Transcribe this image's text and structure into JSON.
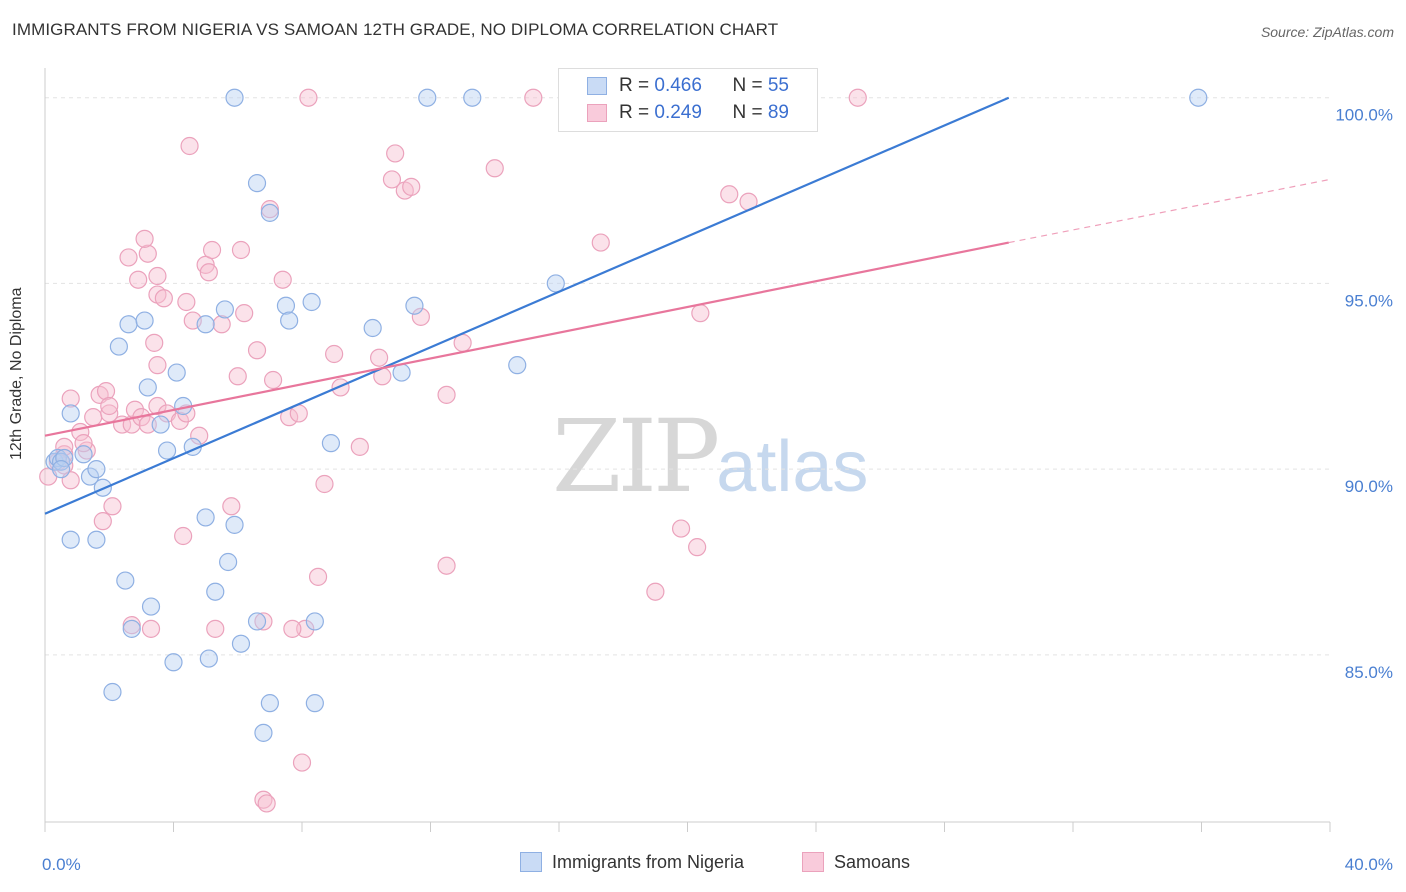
{
  "title": "IMMIGRANTS FROM NIGERIA VS SAMOAN 12TH GRADE, NO DIPLOMA CORRELATION CHART",
  "source": "Source: ZipAtlas.com",
  "watermark": {
    "zip": "ZIP",
    "atlas": "atlas"
  },
  "colors": {
    "blue": "#3b7bd4",
    "pink": "#e8769c",
    "blue_fill": "#b9d0f2",
    "pink_fill": "#f6bfd1"
  },
  "legend": {
    "rows": [
      {
        "r_label": "R = ",
        "r_value": "0.466",
        "n_label": "N = ",
        "n_value": "55"
      },
      {
        "r_label": "R = ",
        "r_value": "0.249",
        "n_label": "N = ",
        "n_value": "89"
      }
    ]
  },
  "bottom_legend": [
    "Immigrants from Nigeria",
    "Samoans"
  ],
  "chart_data": {
    "type": "scatter",
    "ylabel": "12th Grade, No Diploma",
    "xlabel": "",
    "xlim": [
      0,
      40
    ],
    "ylim": [
      80.5,
      100.8
    ],
    "x_tick_labels": [
      {
        "x": 0,
        "label": "0.0%"
      },
      {
        "x": 40,
        "label": "40.0%"
      }
    ],
    "y_ticks": [
      {
        "y": 85,
        "label": "85.0%"
      },
      {
        "y": 90,
        "label": "90.0%"
      },
      {
        "y": 95,
        "label": "95.0%"
      },
      {
        "y": 100,
        "label": "100.0%"
      }
    ],
    "grid": true,
    "legend_position": "top-center",
    "series": [
      {
        "name": "Immigrants from Nigeria",
        "color": "#3b7bd4",
        "trend": {
          "x0": 0,
          "y0": 88.8,
          "x1": 30,
          "y1": 100.0
        },
        "points": [
          [
            0.3,
            90.2
          ],
          [
            0.4,
            90.3
          ],
          [
            0.5,
            90.2
          ],
          [
            0.6,
            90.3
          ],
          [
            0.8,
            91.5
          ],
          [
            1.2,
            90.4
          ],
          [
            1.4,
            89.8
          ],
          [
            1.6,
            90.0
          ],
          [
            1.8,
            89.5
          ],
          [
            0.8,
            88.1
          ],
          [
            1.6,
            88.1
          ],
          [
            2.3,
            93.3
          ],
          [
            2.6,
            93.9
          ],
          [
            3.1,
            94.0
          ],
          [
            3.2,
            92.2
          ],
          [
            3.6,
            91.2
          ],
          [
            3.8,
            90.5
          ],
          [
            4.1,
            92.6
          ],
          [
            4.3,
            91.7
          ],
          [
            4.6,
            90.6
          ],
          [
            5.0,
            93.9
          ],
          [
            5.6,
            94.3
          ],
          [
            5.0,
            88.7
          ],
          [
            5.3,
            86.7
          ],
          [
            5.7,
            87.5
          ],
          [
            5.9,
            88.5
          ],
          [
            2.5,
            87.0
          ],
          [
            3.3,
            86.3
          ],
          [
            2.7,
            85.7
          ],
          [
            4.0,
            84.8
          ],
          [
            5.1,
            84.9
          ],
          [
            6.1,
            85.3
          ],
          [
            6.6,
            85.9
          ],
          [
            2.1,
            84.0
          ],
          [
            7.0,
            83.7
          ],
          [
            6.8,
            82.9
          ],
          [
            8.4,
            83.7
          ],
          [
            8.4,
            85.9
          ],
          [
            6.6,
            97.7
          ],
          [
            7.0,
            96.9
          ],
          [
            5.9,
            100.0
          ],
          [
            11.9,
            100.0
          ],
          [
            13.3,
            100.0
          ],
          [
            16.9,
            100.0
          ],
          [
            35.9,
            100.0
          ],
          [
            7.5,
            94.4
          ],
          [
            7.6,
            94.0
          ],
          [
            8.3,
            94.5
          ],
          [
            10.2,
            93.8
          ],
          [
            11.1,
            92.6
          ],
          [
            11.5,
            94.4
          ],
          [
            14.7,
            92.8
          ],
          [
            15.9,
            95.0
          ],
          [
            8.9,
            90.7
          ],
          [
            0.5,
            90.0
          ]
        ]
      },
      {
        "name": "Samoans",
        "color": "#e8769c",
        "trend": {
          "x0": 0,
          "y0": 90.9,
          "x1": 30,
          "y1": 96.1
        },
        "trend_extension": {
          "x0": 30,
          "y0": 96.1,
          "x1": 40,
          "y1": 97.8
        },
        "points": [
          [
            0.1,
            89.8
          ],
          [
            0.4,
            90.2
          ],
          [
            0.6,
            90.4
          ],
          [
            0.6,
            90.6
          ],
          [
            0.8,
            91.9
          ],
          [
            1.1,
            91.0
          ],
          [
            1.3,
            90.5
          ],
          [
            1.5,
            91.4
          ],
          [
            1.7,
            92.0
          ],
          [
            1.9,
            92.1
          ],
          [
            2.0,
            91.5
          ],
          [
            2.1,
            89.0
          ],
          [
            1.8,
            88.6
          ],
          [
            2.4,
            91.2
          ],
          [
            2.7,
            91.2
          ],
          [
            2.8,
            91.6
          ],
          [
            3.0,
            91.4
          ],
          [
            3.2,
            91.2
          ],
          [
            3.5,
            91.7
          ],
          [
            3.8,
            91.5
          ],
          [
            3.5,
            92.8
          ],
          [
            3.4,
            93.4
          ],
          [
            3.2,
            95.8
          ],
          [
            2.6,
            95.7
          ],
          [
            2.9,
            95.1
          ],
          [
            3.1,
            96.2
          ],
          [
            3.5,
            94.7
          ],
          [
            3.5,
            95.2
          ],
          [
            3.7,
            94.6
          ],
          [
            4.4,
            94.5
          ],
          [
            4.6,
            94.0
          ],
          [
            5.0,
            95.5
          ],
          [
            5.1,
            95.3
          ],
          [
            5.2,
            95.9
          ],
          [
            5.5,
            93.9
          ],
          [
            5.8,
            89.0
          ],
          [
            6.1,
            95.9
          ],
          [
            6.2,
            94.2
          ],
          [
            6.0,
            92.5
          ],
          [
            6.6,
            93.2
          ],
          [
            7.0,
            97.0
          ],
          [
            7.4,
            95.1
          ],
          [
            7.1,
            92.4
          ],
          [
            7.6,
            91.4
          ],
          [
            7.9,
            91.5
          ],
          [
            8.7,
            89.6
          ],
          [
            8.5,
            87.1
          ],
          [
            8.1,
            85.7
          ],
          [
            9.0,
            93.1
          ],
          [
            9.2,
            92.2
          ],
          [
            9.8,
            90.6
          ],
          [
            10.4,
            93.0
          ],
          [
            10.5,
            92.5
          ],
          [
            10.8,
            97.8
          ],
          [
            10.9,
            98.5
          ],
          [
            11.2,
            97.5
          ],
          [
            11.4,
            97.6
          ],
          [
            11.7,
            94.1
          ],
          [
            12.5,
            92.0
          ],
          [
            12.5,
            87.4
          ],
          [
            13.0,
            93.4
          ],
          [
            14.0,
            98.1
          ],
          [
            4.5,
            98.7
          ],
          [
            8.2,
            100.0
          ],
          [
            15.2,
            100.0
          ],
          [
            25.3,
            100.0
          ],
          [
            17.3,
            96.1
          ],
          [
            19.0,
            86.7
          ],
          [
            19.8,
            88.4
          ],
          [
            20.3,
            87.9
          ],
          [
            20.4,
            94.2
          ],
          [
            21.3,
            97.4
          ],
          [
            21.9,
            97.2
          ],
          [
            2.7,
            85.8
          ],
          [
            3.3,
            85.7
          ],
          [
            4.3,
            88.2
          ],
          [
            5.3,
            85.7
          ],
          [
            6.8,
            85.9
          ],
          [
            7.7,
            85.7
          ],
          [
            8.0,
            82.1
          ],
          [
            6.8,
            81.1
          ],
          [
            6.9,
            81.0
          ],
          [
            4.2,
            91.3
          ],
          [
            4.8,
            90.9
          ],
          [
            4.4,
            91.5
          ],
          [
            2.0,
            91.7
          ],
          [
            1.2,
            90.7
          ],
          [
            0.6,
            90.1
          ],
          [
            0.8,
            89.7
          ]
        ]
      }
    ]
  }
}
